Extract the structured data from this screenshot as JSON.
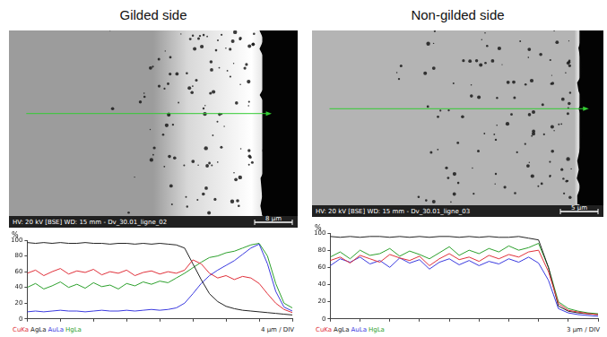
{
  "panels": [
    {
      "heading": "Gilded side",
      "sem_image": {
        "caption": "HV: 20 kV [BSE] WD: 15 mm - Dv_30.01_ligne_02",
        "scale_bar": "8 µm"
      }
    },
    {
      "heading": "Non-gilded side",
      "sem_image": {
        "caption": "HV: 20 kV [BSE] WD: 15 mm - Dv_30.01_ligne_03",
        "scale_bar": "5 µm"
      }
    }
  ],
  "chart_data": [
    {
      "type": "line",
      "y_label": "%",
      "x_label": "4 µm / DIV",
      "x": [
        0,
        1,
        2,
        3,
        4,
        5,
        6,
        7,
        8,
        9,
        10,
        11,
        12,
        13,
        14,
        15,
        16,
        17,
        18,
        19,
        20,
        21,
        22,
        23,
        24,
        25,
        26,
        27,
        28,
        29,
        30,
        31,
        32
      ],
      "xlim": [
        0,
        32
      ],
      "xticks": [
        0,
        4,
        8,
        12,
        16,
        20,
        24,
        28,
        32
      ],
      "ylim": [
        0,
        100
      ],
      "yticks": [
        0,
        20,
        40,
        60,
        80,
        100
      ],
      "grid": false,
      "legend": "bottom left",
      "tick_labels": "y",
      "series": [
        {
          "name": "CuKa",
          "color": "#e0303a",
          "values": [
            58,
            62,
            55,
            60,
            64,
            57,
            61,
            59,
            63,
            56,
            60,
            58,
            62,
            55,
            59,
            61,
            57,
            60,
            58,
            62,
            75,
            70,
            58,
            52,
            55,
            50,
            54,
            52,
            45,
            32,
            20,
            12,
            8
          ]
        },
        {
          "name": "AgLa",
          "color": "#222222",
          "values": [
            97,
            96,
            97,
            96,
            97,
            96,
            96,
            97,
            96,
            96,
            95,
            96,
            96,
            95,
            96,
            95,
            96,
            95,
            94,
            90,
            70,
            50,
            32,
            22,
            16,
            13,
            11,
            10,
            9,
            8,
            7,
            6,
            5
          ]
        },
        {
          "name": "AuLa",
          "color": "#3a3adf",
          "values": [
            9,
            10,
            9,
            10,
            11,
            10,
            10,
            9,
            10,
            11,
            10,
            10,
            11,
            10,
            11,
            12,
            11,
            12,
            14,
            20,
            32,
            45,
            55,
            62,
            68,
            74,
            82,
            90,
            95,
            70,
            35,
            15,
            10
          ]
        },
        {
          "name": "HgLa",
          "color": "#2ca02c",
          "values": [
            40,
            45,
            38,
            42,
            47,
            40,
            44,
            39,
            46,
            41,
            43,
            38,
            45,
            42,
            47,
            44,
            48,
            46,
            52,
            58,
            65,
            72,
            78,
            80,
            84,
            86,
            90,
            94,
            96,
            80,
            45,
            20,
            14
          ]
        }
      ]
    },
    {
      "type": "line",
      "y_label": "%",
      "x_label": "3 µm / DIV",
      "x": [
        0,
        1,
        2,
        3,
        4,
        5,
        6,
        7,
        8,
        9,
        10,
        11,
        12,
        13,
        14,
        15,
        16,
        17,
        18,
        19,
        20,
        21,
        22,
        23,
        24,
        25,
        26,
        27
      ],
      "xlim": [
        0,
        27
      ],
      "xticks": [
        0,
        3,
        6,
        9,
        12,
        15,
        18,
        21,
        24,
        27
      ],
      "ylim": [
        0,
        100
      ],
      "yticks": [
        0,
        20,
        40,
        60,
        80,
        100
      ],
      "grid": false,
      "legend": "bottom left",
      "tick_labels": "y",
      "series": [
        {
          "name": "CuKa",
          "color": "#e0303a",
          "values": [
            68,
            72,
            65,
            74,
            70,
            66,
            75,
            71,
            68,
            73,
            62,
            70,
            76,
            69,
            72,
            67,
            74,
            70,
            75,
            72,
            78,
            80,
            55,
            18,
            10,
            8,
            6,
            5
          ]
        },
        {
          "name": "AgLa",
          "color": "#222222",
          "values": [
            96,
            95,
            96,
            95,
            96,
            96,
            95,
            96,
            95,
            96,
            95,
            96,
            96,
            95,
            96,
            95,
            96,
            95,
            95,
            96,
            94,
            92,
            60,
            15,
            9,
            7,
            6,
            5
          ]
        },
        {
          "name": "AuLa",
          "color": "#3a3adf",
          "values": [
            62,
            70,
            66,
            72,
            64,
            68,
            60,
            71,
            65,
            69,
            58,
            66,
            70,
            63,
            68,
            62,
            67,
            64,
            70,
            66,
            72,
            65,
            45,
            12,
            7,
            5,
            4,
            3
          ]
        },
        {
          "name": "HgLa",
          "color": "#2ca02c",
          "values": [
            72,
            78,
            70,
            80,
            74,
            76,
            82,
            73,
            79,
            75,
            70,
            77,
            84,
            74,
            80,
            76,
            82,
            78,
            85,
            80,
            83,
            88,
            60,
            20,
            12,
            9,
            7,
            6
          ]
        }
      ]
    }
  ]
}
